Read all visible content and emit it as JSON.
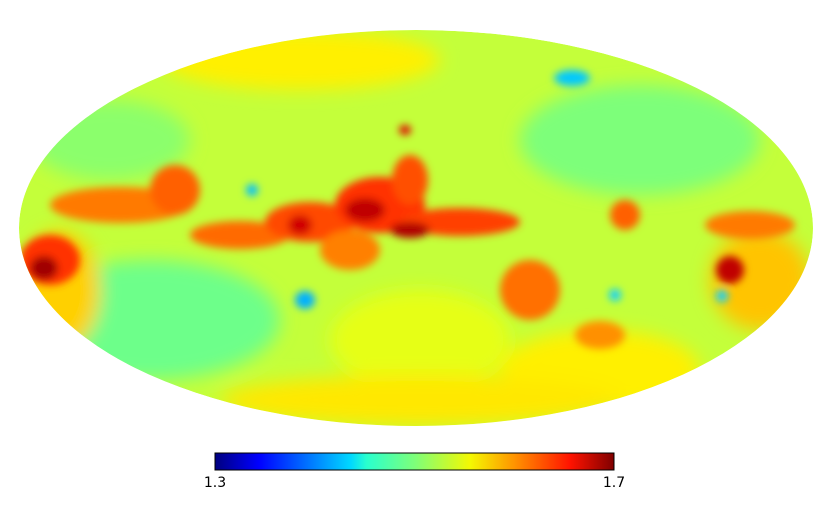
{
  "colorbar": {
    "range": [
      1.3,
      1.7
    ],
    "ticks": [
      1.3,
      1.7
    ]
  }
}
